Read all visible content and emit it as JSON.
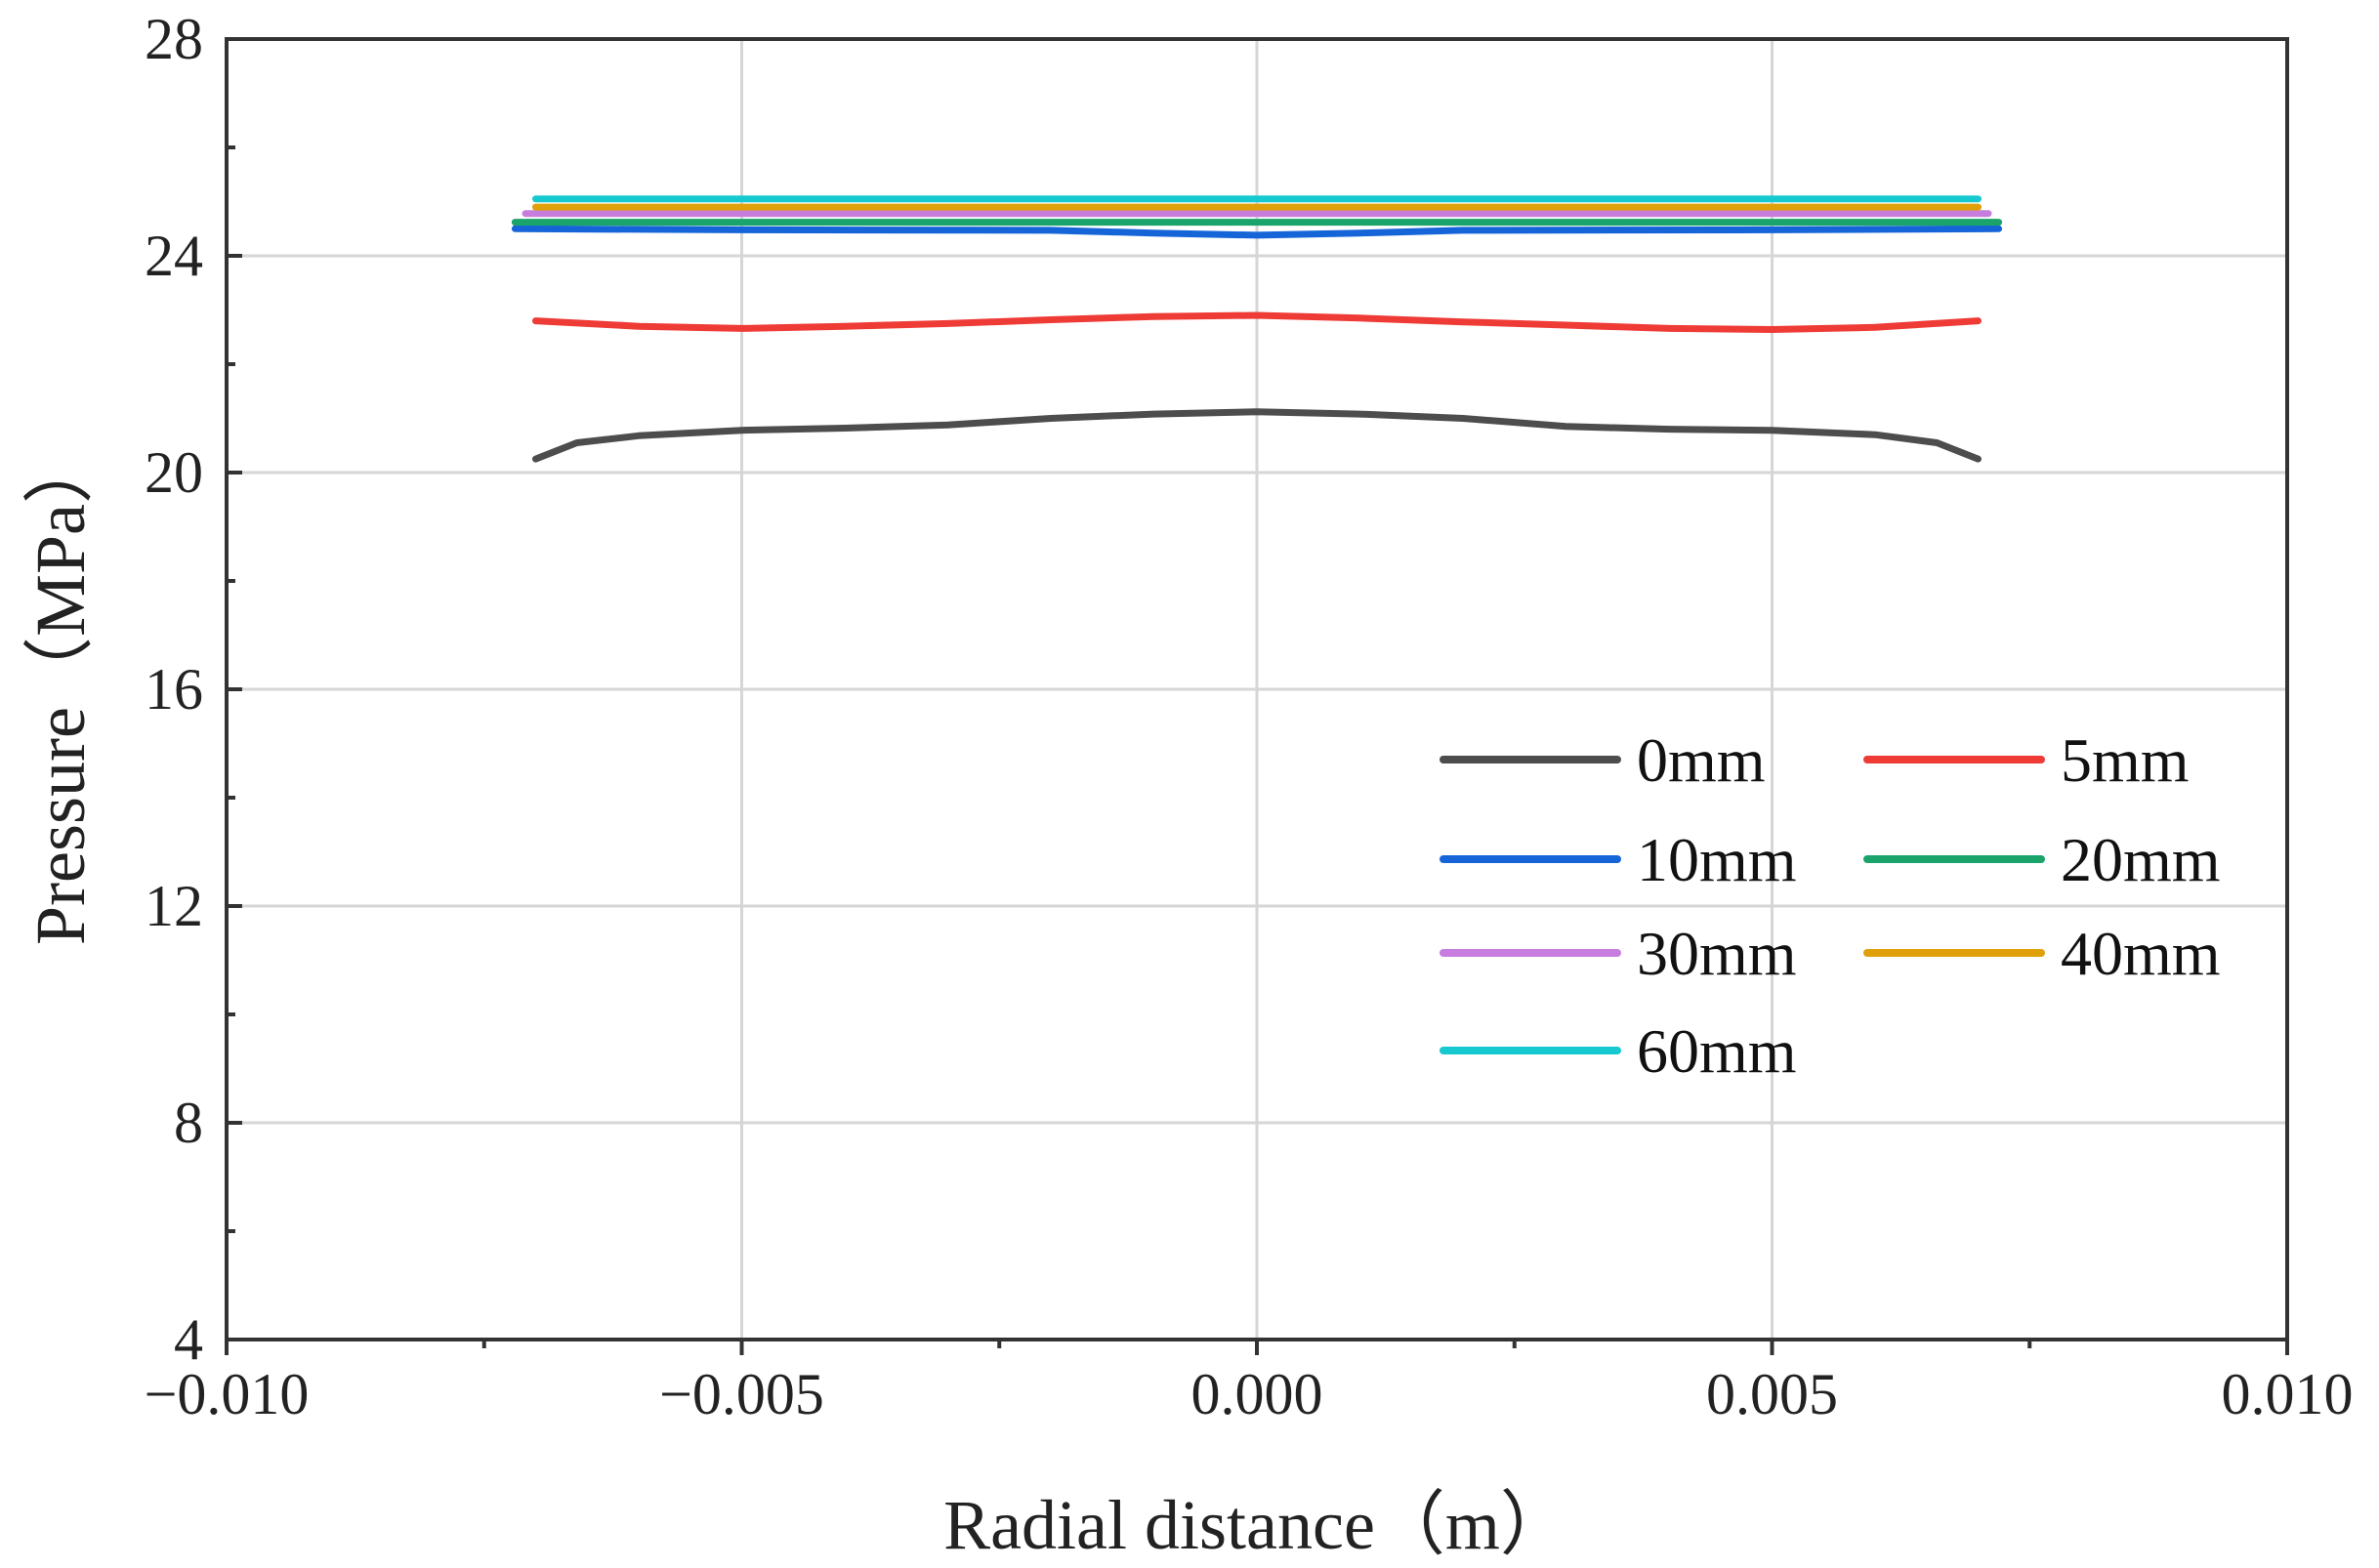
{
  "chart_data": {
    "type": "line",
    "title": "",
    "xlabel": "Radial distance（m）",
    "ylabel": "Pressure（MPa）",
    "xlim": [
      -0.01,
      0.01
    ],
    "ylim": [
      4,
      28
    ],
    "xticks": [
      -0.01,
      -0.005,
      0.0,
      0.005,
      0.01
    ],
    "xtick_labels": [
      "−0.010",
      "−0.005",
      "0.000",
      "0.005",
      "0.010"
    ],
    "xminor": [
      -0.0075,
      -0.0025,
      0.0025,
      0.0075
    ],
    "yticks": [
      4,
      8,
      12,
      16,
      20,
      24,
      28
    ],
    "ytick_labels": [
      "4",
      "8",
      "12",
      "16",
      "20",
      "24",
      "28"
    ],
    "yminor": [
      6,
      10,
      14,
      18,
      22,
      26
    ],
    "grid": true,
    "legend_position": "lower-right",
    "series": [
      {
        "name": "0mm",
        "color": "#4d4d4d",
        "x": [
          -0.007,
          -0.0066,
          -0.006,
          -0.005,
          -0.004,
          -0.003,
          -0.002,
          -0.001,
          0.0,
          0.001,
          0.002,
          0.003,
          0.004,
          0.005,
          0.006,
          0.0066,
          0.007
        ],
        "y": [
          20.25,
          20.55,
          20.68,
          20.78,
          20.82,
          20.88,
          21.0,
          21.08,
          21.12,
          21.08,
          21.0,
          20.85,
          20.8,
          20.78,
          20.7,
          20.55,
          20.25
        ]
      },
      {
        "name": "5mm",
        "color": "#ef3b36",
        "x": [
          -0.007,
          -0.006,
          -0.005,
          -0.004,
          -0.003,
          -0.002,
          -0.001,
          0.0,
          0.001,
          0.002,
          0.003,
          0.004,
          0.005,
          0.006,
          0.007
        ],
        "y": [
          22.8,
          22.7,
          22.66,
          22.7,
          22.75,
          22.82,
          22.88,
          22.9,
          22.85,
          22.78,
          22.72,
          22.66,
          22.64,
          22.68,
          22.8
        ]
      },
      {
        "name": "10mm",
        "color": "#1565d8",
        "x": [
          -0.0072,
          -0.005,
          -0.002,
          -0.001,
          0.0,
          0.001,
          0.002,
          0.005,
          0.0072
        ],
        "y": [
          24.5,
          24.48,
          24.47,
          24.42,
          24.38,
          24.42,
          24.47,
          24.48,
          24.5
        ]
      },
      {
        "name": "20mm",
        "color": "#1aa36a",
        "x": [
          -0.0072,
          -0.004,
          0.0,
          0.004,
          0.0072
        ],
        "y": [
          24.62,
          24.62,
          24.62,
          24.62,
          24.62
        ]
      },
      {
        "name": "30mm",
        "color": "#c77dde",
        "x": [
          -0.0071,
          -0.004,
          0.0,
          0.004,
          0.0071
        ],
        "y": [
          24.78,
          24.78,
          24.78,
          24.78,
          24.78
        ]
      },
      {
        "name": "40mm",
        "color": "#e0a00a",
        "x": [
          -0.007,
          -0.004,
          0.0,
          0.004,
          0.007
        ],
        "y": [
          24.9,
          24.9,
          24.9,
          24.9,
          24.9
        ]
      },
      {
        "name": "60mm",
        "color": "#16c8d0",
        "x": [
          -0.007,
          -0.004,
          0.0,
          0.004,
          0.007
        ],
        "y": [
          25.05,
          25.05,
          25.05,
          25.05,
          25.05
        ]
      }
    ]
  }
}
